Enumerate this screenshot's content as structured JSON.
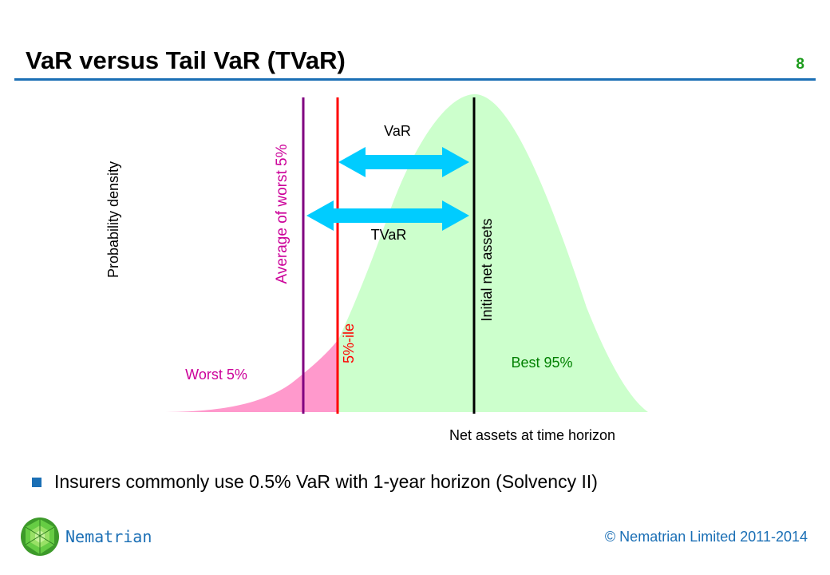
{
  "slide": {
    "title": "VaR versus Tail VaR (TVaR)",
    "number": "8"
  },
  "diagram": {
    "y_axis_label": "Probability density",
    "x_axis_label": "Net assets at time horizon",
    "labels": {
      "average_worst": "Average of worst 5%",
      "percentile": "5%-ile",
      "initial_assets": "Initial net assets",
      "var": "VaR",
      "tvar": "TVaR",
      "worst": "Worst 5%",
      "best": "Best 95%"
    },
    "colors": {
      "worst_region": "#ff99cc",
      "best_region": "#ccffcc",
      "average_line": "#800080",
      "percentile_line": "#ff0000",
      "initial_line": "#000000",
      "arrows": "#00ccff",
      "worst_text": "#cc0099",
      "best_text": "#008000"
    }
  },
  "bullets": [
    "Insurers commonly use 0.5% VaR with 1-year horizon (Solvency II)"
  ],
  "footer": {
    "brand": "Nematrian",
    "copyright": "© Nematrian Limited 2011-2014"
  }
}
